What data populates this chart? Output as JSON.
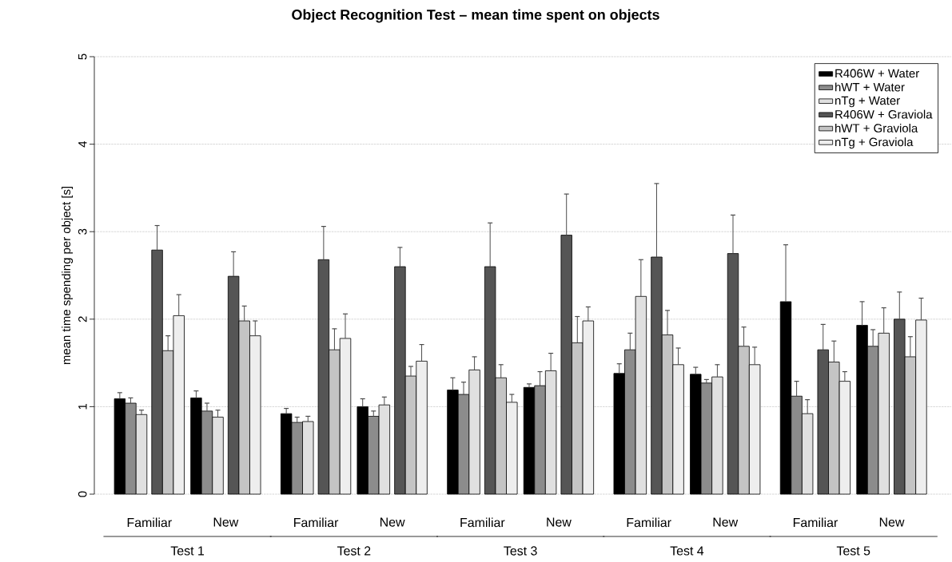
{
  "chart_data": {
    "type": "bar",
    "title": "Object Recognition Test – mean time spent on objects",
    "ylabel": "mean time spending per object [s]",
    "categories": [
      "Familiar",
      "New",
      "Familiar",
      "New",
      "Familiar",
      "New",
      "Familiar",
      "New",
      "Familiar",
      "New"
    ],
    "annotations": [
      "Test 1",
      "Test 2",
      "Test 3",
      "Test 4",
      "Test 5"
    ],
    "series": [
      {
        "name": "R406W + Water",
        "color": "#000000",
        "values": [
          1.09,
          1.1,
          0.92,
          1.0,
          1.19,
          1.22,
          1.38,
          1.37,
          2.2,
          1.93
        ],
        "errors": [
          [
            1.09,
            1.16
          ],
          [
            1.1,
            1.18
          ],
          [
            0.92,
            0.98
          ],
          [
            1.0,
            1.09
          ],
          [
            1.19,
            1.33
          ],
          [
            1.22,
            1.26
          ],
          [
            1.38,
            1.49
          ],
          [
            1.37,
            1.45
          ],
          [
            2.2,
            2.85
          ],
          [
            1.93,
            2.2
          ]
        ]
      },
      {
        "name": "hWT + Water",
        "color": "#8c8c8c",
        "values": [
          1.04,
          0.95,
          0.82,
          0.89,
          1.14,
          1.24,
          1.65,
          1.27,
          1.12,
          1.69
        ],
        "errors": [
          [
            1.04,
            1.1
          ],
          [
            0.95,
            1.04
          ],
          [
            0.82,
            0.88
          ],
          [
            0.89,
            0.95
          ],
          [
            1.14,
            1.28
          ],
          [
            1.24,
            1.4
          ],
          [
            1.65,
            1.84
          ],
          [
            1.27,
            1.31
          ],
          [
            1.12,
            1.29
          ],
          [
            1.69,
            1.88
          ]
        ]
      },
      {
        "name": "nTg + Water",
        "color": "#e0e0e0",
        "values": [
          0.91,
          0.88,
          0.83,
          1.02,
          1.42,
          1.41,
          2.26,
          1.34,
          0.92,
          1.84
        ],
        "errors": [
          [
            0.91,
            0.96
          ],
          [
            0.88,
            0.96
          ],
          [
            0.83,
            0.89
          ],
          [
            1.02,
            1.11
          ],
          [
            1.42,
            1.57
          ],
          [
            1.41,
            1.61
          ],
          [
            2.26,
            2.68
          ],
          [
            1.34,
            1.48
          ],
          [
            0.92,
            1.08
          ],
          [
            1.84,
            2.13
          ]
        ]
      },
      {
        "name": "R406W + Graviola",
        "color": "#555555",
        "values": [
          2.79,
          2.49,
          2.68,
          2.6,
          2.6,
          2.96,
          2.71,
          2.75,
          1.65,
          2.0
        ],
        "errors": [
          [
            2.79,
            3.07
          ],
          [
            2.49,
            2.77
          ],
          [
            2.68,
            3.06
          ],
          [
            2.6,
            2.82
          ],
          [
            2.6,
            3.1
          ],
          [
            2.96,
            3.43
          ],
          [
            2.71,
            3.55
          ],
          [
            2.75,
            3.19
          ],
          [
            1.65,
            1.94
          ],
          [
            2.0,
            2.31
          ]
        ]
      },
      {
        "name": "hWT + Graviola",
        "color": "#c4c4c4",
        "values": [
          1.64,
          1.98,
          1.65,
          1.35,
          1.33,
          1.73,
          1.82,
          1.69,
          1.51,
          1.57
        ],
        "errors": [
          [
            1.64,
            1.81
          ],
          [
            1.98,
            2.15
          ],
          [
            1.65,
            1.89
          ],
          [
            1.35,
            1.46
          ],
          [
            1.33,
            1.48
          ],
          [
            1.73,
            2.03
          ],
          [
            1.82,
            2.1
          ],
          [
            1.69,
            1.91
          ],
          [
            1.51,
            1.75
          ],
          [
            1.57,
            1.8
          ]
        ]
      },
      {
        "name": "nTg + Graviola",
        "color": "#eeeeee",
        "values": [
          2.04,
          1.81,
          1.78,
          1.52,
          1.05,
          1.98,
          1.48,
          1.48,
          1.29,
          1.99
        ],
        "errors": [
          [
            2.04,
            2.28
          ],
          [
            1.81,
            1.98
          ],
          [
            1.78,
            2.06
          ],
          [
            1.52,
            1.71
          ],
          [
            1.05,
            1.14
          ],
          [
            1.98,
            2.14
          ],
          [
            1.48,
            1.67
          ],
          [
            1.48,
            1.68
          ],
          [
            1.29,
            1.4
          ],
          [
            1.99,
            2.24
          ]
        ]
      }
    ],
    "ylim": [
      0,
      5
    ],
    "yticks": [
      0,
      1,
      2,
      3,
      4,
      5
    ],
    "grid": "y",
    "legend": "top right"
  }
}
